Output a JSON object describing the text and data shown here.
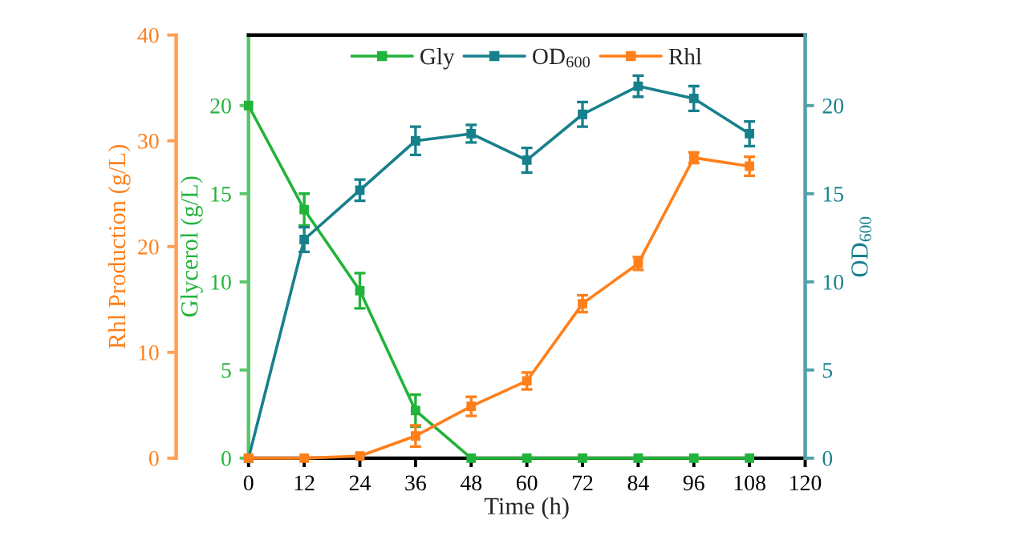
{
  "chart_data": {
    "type": "line",
    "xlabel": "Time (h)",
    "ylabel": "Glycerol (g/L)",
    "y2label": "OD$_{600}$",
    "y3label": "Rhl Production (g/L)",
    "x": [
      0,
      12,
      24,
      36,
      48,
      60,
      72,
      84,
      96,
      108
    ],
    "xlim": [
      0,
      120
    ],
    "xticks": [
      0,
      12,
      24,
      36,
      48,
      60,
      72,
      84,
      96,
      108,
      120
    ],
    "ylim": [
      0,
      24
    ],
    "yticks": [
      0,
      5,
      10,
      15,
      20
    ],
    "y2lim": [
      0,
      24
    ],
    "y2ticks": [
      0,
      5,
      10,
      15,
      20
    ],
    "y3lim": [
      0,
      40
    ],
    "y3ticks": [
      0,
      10,
      20,
      30,
      40
    ],
    "series": [
      {
        "name": "Gly",
        "color": "#22b33a",
        "axis": "y",
        "values": [
          20.0,
          14.1,
          9.5,
          2.7,
          0,
          0,
          0,
          0,
          0,
          0
        ],
        "errors": [
          null,
          0.9,
          1.0,
          0.9,
          null,
          null,
          null,
          null,
          null,
          null
        ]
      },
      {
        "name": "OD$_{600}$",
        "color": "#17808c",
        "axis": "y2",
        "values": [
          0,
          12.4,
          15.2,
          18.0,
          18.4,
          16.9,
          19.5,
          21.1,
          20.4,
          18.4
        ],
        "errors": [
          null,
          0.7,
          0.6,
          0.8,
          0.5,
          0.7,
          0.7,
          0.6,
          0.7,
          0.7
        ]
      },
      {
        "name": "Rhl",
        "color": "#ff7f1a",
        "axis": "y3",
        "values": [
          0,
          0,
          0.2,
          2.1,
          4.9,
          7.3,
          14.6,
          18.4,
          28.4,
          27.6
        ],
        "errors": [
          null,
          null,
          null,
          1.0,
          0.9,
          0.8,
          0.8,
          0.6,
          0.5,
          0.9
        ]
      }
    ],
    "legend": "top",
    "marker": "square",
    "line_style": "solid",
    "grid": false
  }
}
